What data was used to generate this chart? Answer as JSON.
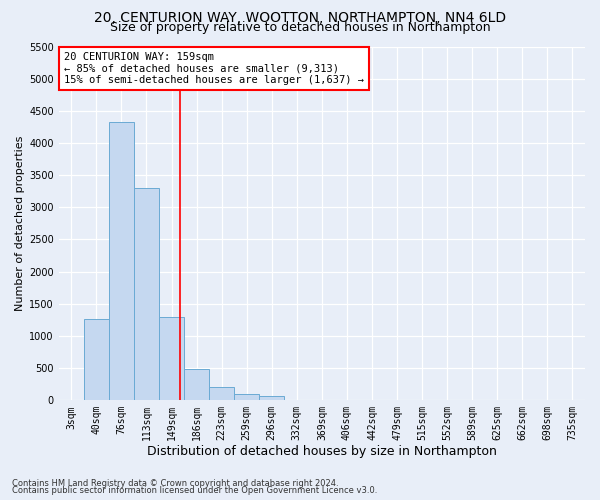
{
  "title1": "20, CENTURION WAY, WOOTTON, NORTHAMPTON, NN4 6LD",
  "title2": "Size of property relative to detached houses in Northampton",
  "xlabel": "Distribution of detached houses by size in Northampton",
  "ylabel": "Number of detached properties",
  "footnote1": "Contains HM Land Registry data © Crown copyright and database right 2024.",
  "footnote2": "Contains public sector information licensed under the Open Government Licence v3.0.",
  "bar_labels": [
    "3sqm",
    "40sqm",
    "76sqm",
    "113sqm",
    "149sqm",
    "186sqm",
    "223sqm",
    "259sqm",
    "296sqm",
    "332sqm",
    "369sqm",
    "406sqm",
    "442sqm",
    "479sqm",
    "515sqm",
    "552sqm",
    "589sqm",
    "625sqm",
    "662sqm",
    "698sqm",
    "735sqm"
  ],
  "bar_values": [
    0,
    1270,
    4330,
    3300,
    1290,
    480,
    210,
    90,
    60,
    0,
    0,
    0,
    0,
    0,
    0,
    0,
    0,
    0,
    0,
    0,
    0
  ],
  "bar_color": "#c5d8f0",
  "bar_edge_color": "#6aaad4",
  "vline_x_idx": 4.35,
  "vline_color": "red",
  "annotation_text": "20 CENTURION WAY: 159sqm\n← 85% of detached houses are smaller (9,313)\n15% of semi-detached houses are larger (1,637) →",
  "annotation_box_color": "white",
  "annotation_box_edge_color": "red",
  "ylim": [
    0,
    5500
  ],
  "yticks": [
    0,
    500,
    1000,
    1500,
    2000,
    2500,
    3000,
    3500,
    4000,
    4500,
    5000,
    5500
  ],
  "bg_color": "#e8eef8",
  "plot_bg_color": "#e8eef8",
  "title1_fontsize": 10,
  "title2_fontsize": 9,
  "xlabel_fontsize": 9,
  "ylabel_fontsize": 8,
  "tick_fontsize": 7,
  "annotation_fontsize": 7.5,
  "footnote_fontsize": 6.0
}
